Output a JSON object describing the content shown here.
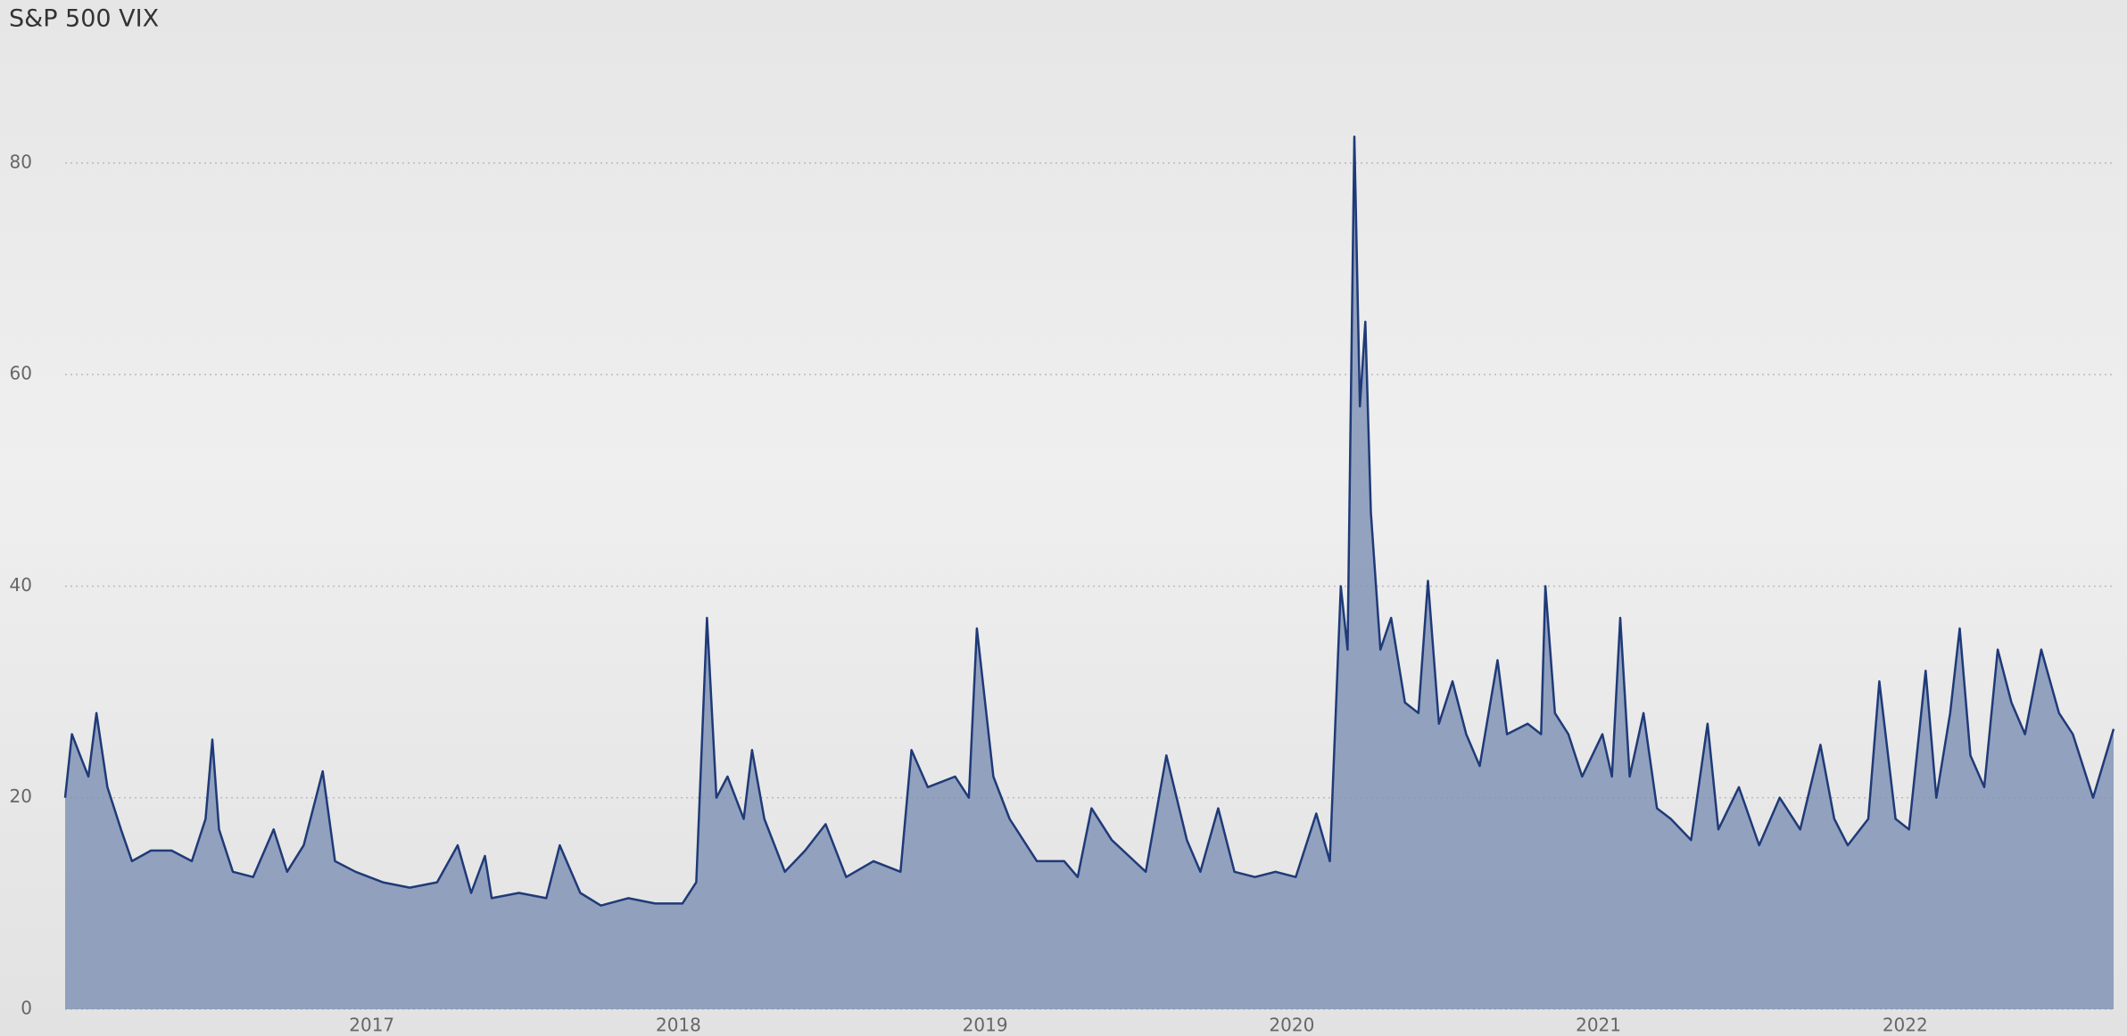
{
  "chart_data": {
    "type": "area",
    "title": "S&P 500 VIX",
    "x": [
      2016.0,
      2016.022,
      2016.049,
      2016.076,
      2016.102,
      2016.138,
      2016.182,
      2016.218,
      2016.28,
      2016.347,
      2016.413,
      2016.458,
      2016.48,
      2016.502,
      2016.547,
      2016.613,
      2016.68,
      2016.724,
      2016.778,
      2016.84,
      2016.88,
      2016.947,
      2017.036,
      2017.124,
      2017.213,
      2017.28,
      2017.324,
      2017.369,
      2017.391,
      2017.48,
      2017.569,
      2017.613,
      2017.68,
      2017.747,
      2017.836,
      2017.924,
      2018.013,
      2018.058,
      2018.093,
      2018.124,
      2018.16,
      2018.213,
      2018.24,
      2018.28,
      2018.347,
      2018.413,
      2018.48,
      2018.547,
      2018.636,
      2018.724,
      2018.76,
      2018.813,
      2018.902,
      2018.947,
      2018.973,
      2019.027,
      2019.08,
      2019.169,
      2019.258,
      2019.302,
      2019.347,
      2019.413,
      2019.524,
      2019.591,
      2019.658,
      2019.702,
      2019.76,
      2019.813,
      2019.88,
      2019.947,
      2020.013,
      2020.08,
      2020.124,
      2020.16,
      2020.182,
      2020.204,
      2020.222,
      2020.24,
      2020.258,
      2020.289,
      2020.324,
      2020.369,
      2020.413,
      2020.444,
      2020.48,
      2020.524,
      2020.569,
      2020.613,
      2020.671,
      2020.702,
      2020.769,
      2020.813,
      2020.827,
      2020.858,
      2020.902,
      2020.947,
      2021.013,
      2021.044,
      2021.071,
      2021.102,
      2021.147,
      2021.191,
      2021.236,
      2021.302,
      2021.356,
      2021.391,
      2021.458,
      2021.524,
      2021.591,
      2021.658,
      2021.724,
      2021.769,
      2021.813,
      2021.88,
      2021.916,
      2021.969,
      2022.013,
      2022.067,
      2022.102,
      2022.147,
      2022.178,
      2022.213,
      2022.258,
      2022.302,
      2022.347,
      2022.391,
      2022.444,
      2022.502,
      2022.547,
      2022.613,
      2022.68
    ],
    "values": [
      20,
      26,
      24,
      22,
      28,
      21,
      17,
      14,
      15,
      15,
      14,
      18,
      25.5,
      17,
      13,
      12.5,
      17,
      13,
      15.5,
      22.5,
      14,
      13,
      12,
      11.5,
      12,
      15.5,
      11,
      14.5,
      10.5,
      11,
      10.5,
      15.5,
      11,
      9.8,
      10.5,
      10,
      10,
      12,
      37,
      20,
      22,
      18,
      24.5,
      18,
      13,
      15,
      17.5,
      12.5,
      14,
      13,
      24.5,
      21,
      22,
      20,
      36,
      22,
      18,
      14,
      14,
      12.5,
      19,
      16,
      13,
      24,
      16,
      13,
      19,
      13,
      12.5,
      13,
      12.5,
      18.5,
      14,
      40,
      34,
      82.5,
      57,
      65,
      47,
      34,
      37,
      29,
      28,
      40.5,
      27,
      31,
      26,
      23,
      33,
      26,
      27,
      26,
      40,
      28,
      26,
      22,
      26,
      22,
      37,
      22,
      28,
      19,
      18,
      16,
      27,
      17,
      21,
      15.5,
      20,
      17,
      25,
      18,
      15.5,
      18,
      31,
      18,
      17,
      32,
      20,
      28,
      36,
      24,
      21,
      34,
      29,
      26,
      34,
      28,
      26,
      20,
      26.5
    ],
    "color": "#1f3a78",
    "fill": "#8294b6",
    "xlim": [
      2016.0,
      2022.68
    ],
    "xticks": [
      2017,
      2018,
      2019,
      2020,
      2021,
      2022
    ],
    "ylim": [
      0,
      88
    ],
    "yticks": [
      0,
      20,
      40,
      60,
      80
    ],
    "grid": true
  }
}
